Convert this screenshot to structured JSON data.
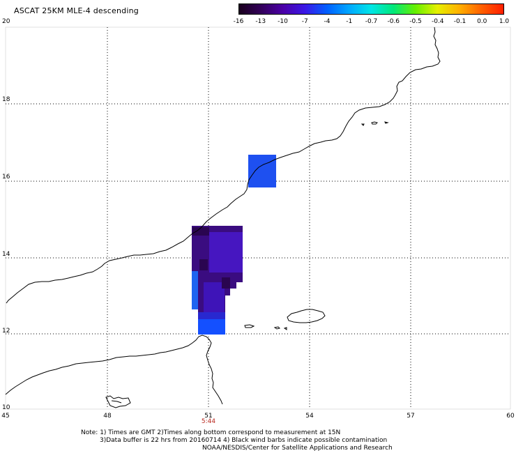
{
  "title": "ASCAT 25KM MLE-4 descending",
  "colorbar": {
    "colors": [
      "#1a001e",
      "#33005a",
      "#4b00a8",
      "#3a18e6",
      "#0060ff",
      "#00a8ff",
      "#00e6e6",
      "#00e87a",
      "#66f000",
      "#e6f000",
      "#ffb000",
      "#ff6000",
      "#ff1e00"
    ],
    "labels": [
      "-16",
      "-13",
      "-10",
      "-7",
      "-4",
      "-1",
      "-0.7",
      "-0.6",
      "-0.5",
      "-0.4",
      "-0.1",
      "0.0",
      "1.0"
    ]
  },
  "axes": {
    "lat_labels": [
      "20",
      "18",
      "16",
      "14",
      "12",
      "10"
    ],
    "lon_labels": [
      "45",
      "48",
      "51",
      "54",
      "57",
      "60"
    ],
    "grid": "dotted"
  },
  "time_label": "5:44",
  "notes": {
    "line1": "Note: 1) Times are GMT 2)Times along bottom correspond to measurement at 15N",
    "line2": "3)Data buffer is 22 hrs from 20160714 4) Black wind barbs indicate possible contamination",
    "line3": "NOAA/NESDIS/Center for Satellite Applications and Research"
  },
  "swath_colors": {
    "north_box": "#1e50f0",
    "west_strip": "#1e64f0",
    "south_box": "#1450ff",
    "purple_dark": "#360a6a",
    "purple_mid": "#4a0fa0",
    "indigo": "#3a1ee0"
  }
}
